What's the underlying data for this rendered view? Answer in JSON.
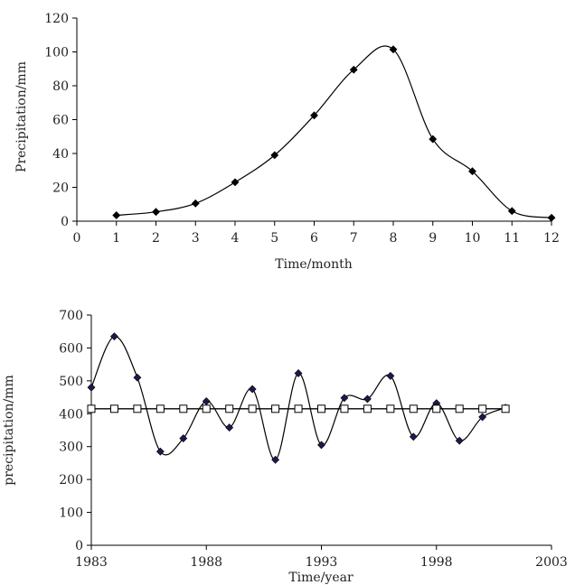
{
  "chart_data": [
    {
      "type": "line",
      "x": [
        1,
        2,
        3,
        4,
        5,
        6,
        7,
        8,
        9,
        10,
        11,
        12
      ],
      "series": [
        {
          "values": [
            3.5,
            5.5,
            10.5,
            23,
            39,
            62.5,
            89.5,
            101.5,
            48.5,
            29.5,
            6,
            2
          ],
          "marker": "diamond",
          "color": "#000000"
        }
      ],
      "xlabel": "Time/month",
      "ylabel": "Precipitation/mm",
      "xlim": [
        0,
        12
      ],
      "ylim": [
        0,
        120
      ],
      "xticks": [
        0,
        1,
        2,
        3,
        4,
        5,
        6,
        7,
        8,
        9,
        10,
        11,
        12
      ],
      "yticks": [
        0,
        20,
        40,
        60,
        80,
        100,
        120
      ],
      "grid": false,
      "smooth": true
    },
    {
      "type": "line",
      "x": [
        1983,
        1984,
        1985,
        1986,
        1987,
        1988,
        1989,
        1990,
        1991,
        1992,
        1993,
        1994,
        1995,
        1996,
        1997,
        1998,
        1999,
        2000,
        2001
      ],
      "series": [
        {
          "values": [
            480,
            635,
            510,
            285,
            325,
            438,
            358,
            475,
            260,
            523,
            305,
            448,
            445,
            515,
            330,
            432,
            318,
            390,
            418
          ],
          "marker": "diamond",
          "color": "#1a1a4e",
          "smooth": true
        },
        {
          "values": [
            415,
            415,
            415,
            415,
            415,
            415,
            415,
            415,
            415,
            415,
            415,
            415,
            415,
            415,
            415,
            415,
            415,
            415,
            415
          ],
          "marker": "open-square",
          "color": "#000000",
          "smooth": false
        }
      ],
      "xlabel": "Time/year",
      "ylabel": "precipitation/mm",
      "xlim": [
        1983,
        2003
      ],
      "ylim": [
        0,
        700
      ],
      "xticks": [
        1983,
        1988,
        1993,
        1998,
        2003
      ],
      "yticks": [
        0,
        100,
        200,
        300,
        400,
        500,
        600,
        700
      ],
      "grid": false
    }
  ]
}
